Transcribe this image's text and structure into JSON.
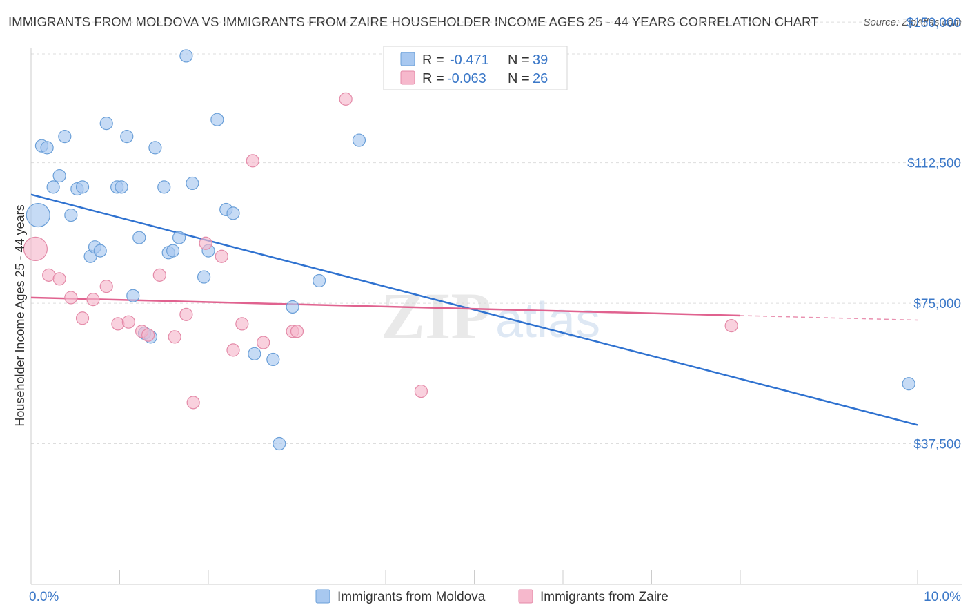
{
  "title": "IMMIGRANTS FROM MOLDOVA VS IMMIGRANTS FROM ZAIRE HOUSEHOLDER INCOME AGES 25 - 44 YEARS CORRELATION CHART",
  "source": "Source: ZipAtlas.com",
  "watermark": {
    "zip": "ZIP",
    "atlas": "atlas"
  },
  "legend": {
    "rows": [
      {
        "r_label": "R =",
        "r_value": "-0.471",
        "n_label": "N =",
        "n_value": "39",
        "color": "#a8c8f0"
      },
      {
        "r_label": "R =",
        "r_value": "-0.063",
        "n_label": "N =",
        "n_value": "26",
        "color": "#f6b8cc"
      }
    ]
  },
  "bottom_legend": [
    {
      "label": "Immigrants from Moldova",
      "color": "#a8c8f0"
    },
    {
      "label": "Immigrants from Zaire",
      "color": "#f6b8cc"
    }
  ],
  "colors": {
    "moldova_fill": "#a8c8f0",
    "moldova_stroke": "#6a9fd8",
    "moldova_line": "#2f72d0",
    "zaire_fill": "#f6b8cc",
    "zaire_stroke": "#e48aa8",
    "zaire_line": "#e0628f",
    "tick_text": "#3b78c8",
    "grid": "#dddddd"
  },
  "chart_data": {
    "type": "scatter",
    "title": "IMMIGRANTS FROM MOLDOVA VS IMMIGRANTS FROM ZAIRE HOUSEHOLDER INCOME AGES 25 - 44 YEARS CORRELATION CHART",
    "xlabel": "",
    "ylabel": "Householder Income Ages 25 - 44 years",
    "xlim": [
      0,
      10
    ],
    "ylim": [
      0,
      155000
    ],
    "x_tick_labels": [
      "0.0%",
      "10.0%"
    ],
    "y_ticks": [
      37500,
      75000,
      112500,
      150000
    ],
    "y_tick_labels": [
      "$37,500",
      "$75,000",
      "$112,500",
      "$150,000"
    ],
    "grid": true,
    "series": [
      {
        "name": "Immigrants from Moldova",
        "trend": {
          "x": [
            0.0,
            10.0
          ],
          "y": [
            104000,
            42500
          ],
          "dashed_from": null
        },
        "points": [
          {
            "x": 0.08,
            "y": 98500,
            "size": "large"
          },
          {
            "x": 0.12,
            "y": 117000
          },
          {
            "x": 0.18,
            "y": 116500
          },
          {
            "x": 0.25,
            "y": 106000
          },
          {
            "x": 0.32,
            "y": 109000
          },
          {
            "x": 0.38,
            "y": 119500
          },
          {
            "x": 0.45,
            "y": 98500
          },
          {
            "x": 0.52,
            "y": 105500
          },
          {
            "x": 0.58,
            "y": 106000
          },
          {
            "x": 0.67,
            "y": 87500
          },
          {
            "x": 0.72,
            "y": 90000
          },
          {
            "x": 0.78,
            "y": 89000
          },
          {
            "x": 0.85,
            "y": 123000
          },
          {
            "x": 0.97,
            "y": 106000
          },
          {
            "x": 1.02,
            "y": 106000
          },
          {
            "x": 1.08,
            "y": 119500
          },
          {
            "x": 1.15,
            "y": 77000
          },
          {
            "x": 1.22,
            "y": 92500
          },
          {
            "x": 1.28,
            "y": 67000
          },
          {
            "x": 1.35,
            "y": 66000
          },
          {
            "x": 1.4,
            "y": 116500
          },
          {
            "x": 1.5,
            "y": 106000
          },
          {
            "x": 1.55,
            "y": 88500
          },
          {
            "x": 1.6,
            "y": 89000
          },
          {
            "x": 1.67,
            "y": 92500
          },
          {
            "x": 1.75,
            "y": 141000
          },
          {
            "x": 1.82,
            "y": 107000
          },
          {
            "x": 1.95,
            "y": 82000
          },
          {
            "x": 2.0,
            "y": 89000
          },
          {
            "x": 2.1,
            "y": 124000
          },
          {
            "x": 2.2,
            "y": 100000
          },
          {
            "x": 2.28,
            "y": 99000
          },
          {
            "x": 2.52,
            "y": 61500
          },
          {
            "x": 2.73,
            "y": 60000
          },
          {
            "x": 2.8,
            "y": 37500
          },
          {
            "x": 2.95,
            "y": 74000
          },
          {
            "x": 3.25,
            "y": 81000
          },
          {
            "x": 3.7,
            "y": 118500
          },
          {
            "x": 9.9,
            "y": 53500
          }
        ]
      },
      {
        "name": "Immigrants from Zaire",
        "trend": {
          "x": [
            0.0,
            10.0
          ],
          "y": [
            76500,
            70500
          ],
          "dashed_from": 8.0
        },
        "points": [
          {
            "x": 0.05,
            "y": 89500,
            "size": "large"
          },
          {
            "x": 0.2,
            "y": 82500
          },
          {
            "x": 0.32,
            "y": 81500
          },
          {
            "x": 0.45,
            "y": 76500
          },
          {
            "x": 0.58,
            "y": 71000
          },
          {
            "x": 0.7,
            "y": 76000
          },
          {
            "x": 0.85,
            "y": 79500
          },
          {
            "x": 0.98,
            "y": 69500
          },
          {
            "x": 1.1,
            "y": 70000
          },
          {
            "x": 1.25,
            "y": 67500
          },
          {
            "x": 1.32,
            "y": 66500
          },
          {
            "x": 1.45,
            "y": 82500
          },
          {
            "x": 1.62,
            "y": 66000
          },
          {
            "x": 1.75,
            "y": 72000
          },
          {
            "x": 1.83,
            "y": 48500
          },
          {
            "x": 1.97,
            "y": 91000
          },
          {
            "x": 2.15,
            "y": 87500
          },
          {
            "x": 2.28,
            "y": 62500
          },
          {
            "x": 2.38,
            "y": 69500
          },
          {
            "x": 2.5,
            "y": 113000
          },
          {
            "x": 2.62,
            "y": 64500
          },
          {
            "x": 2.95,
            "y": 67500
          },
          {
            "x": 3.0,
            "y": 67500
          },
          {
            "x": 3.55,
            "y": 129500
          },
          {
            "x": 4.4,
            "y": 51500
          },
          {
            "x": 7.9,
            "y": 69000
          }
        ]
      }
    ]
  }
}
